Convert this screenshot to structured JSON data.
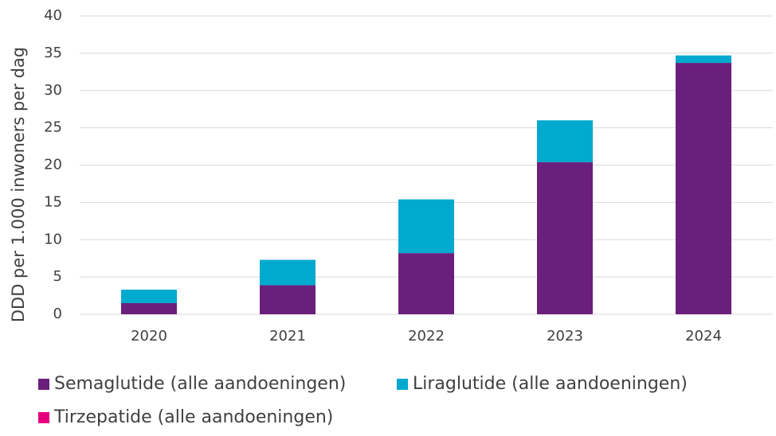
{
  "chart_data": {
    "type": "stacked_bar",
    "y_label": "DDD per 1.000 inwoners per dag",
    "categories": [
      "2020",
      "2021",
      "2022",
      "2023",
      "2024"
    ],
    "series": [
      {
        "name": "Semaglutide (alle aandoeningen)",
        "color": "#6b1f7c",
        "values": [
          1.5,
          3.9,
          8.2,
          20.4,
          33.7
        ]
      },
      {
        "name": "Liraglutide (alle aandoeningen)",
        "color": "#00a9ce",
        "values": [
          1.8,
          3.4,
          7.2,
          5.6,
          1.0
        ]
      },
      {
        "name": "Tirzepatide (alle aandoeningen)",
        "color": "#e6007e",
        "values": [
          0,
          0,
          0,
          0,
          0
        ]
      }
    ],
    "ylim": [
      0,
      40
    ],
    "yticks": [
      0,
      5,
      10,
      15,
      20,
      25,
      30,
      35,
      40
    ],
    "grid": true
  }
}
